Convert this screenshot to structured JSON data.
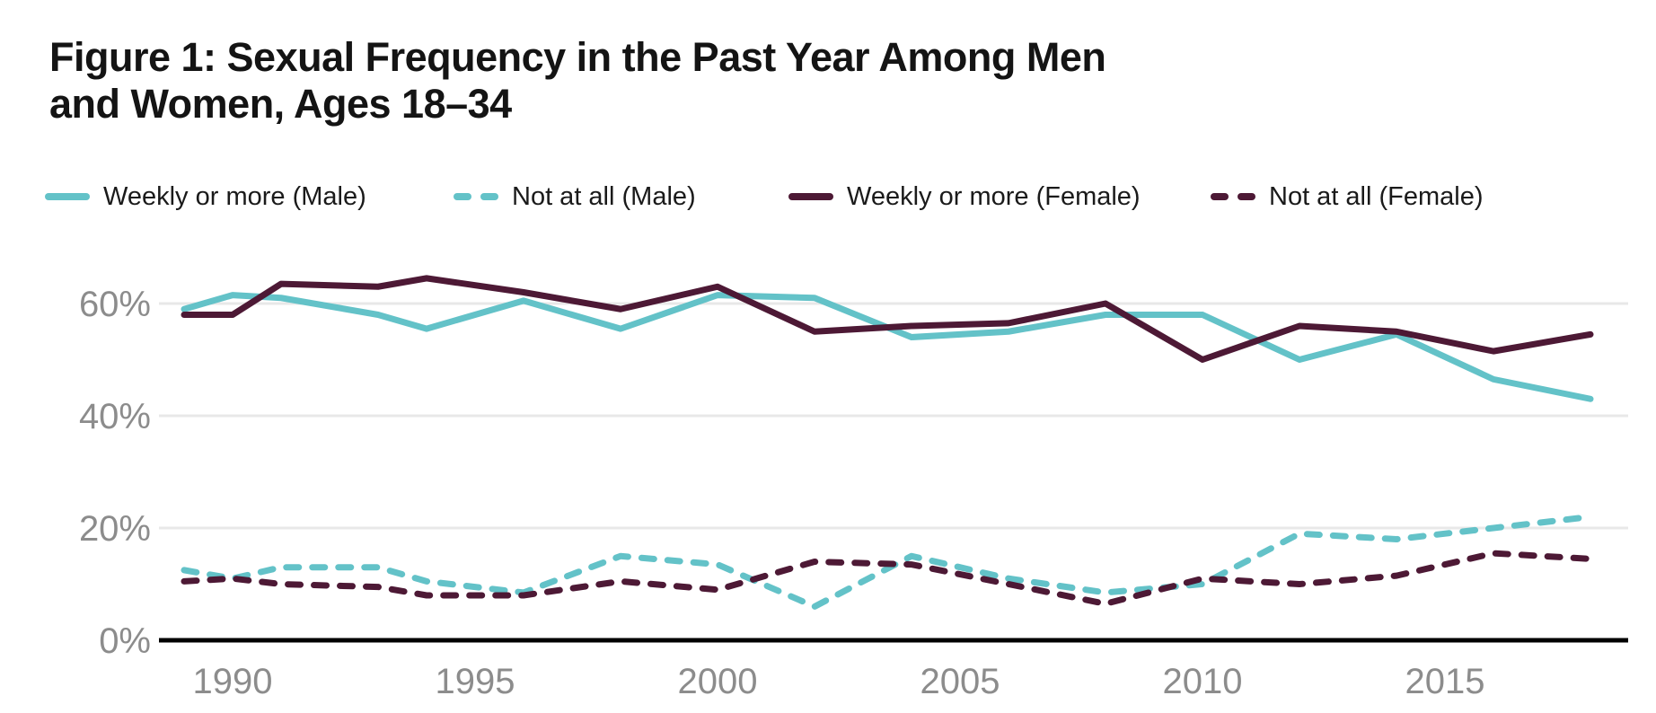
{
  "title": {
    "full": "Figure 1: Sexual Frequency in the Past Year Among Men and Women, Ages 18–34",
    "lines": [
      "Figure 1: Sexual Frequency in the Past Year Among Men",
      "and Women, Ages 18–34"
    ]
  },
  "colors": {
    "teal": "#63c2c8",
    "maroon": "#4d1935",
    "axis_label_gray": "#8c8c8c",
    "gridline_gray": "#e8e8e8",
    "axis_line_black": "#000000",
    "title_text": "#141414"
  },
  "legend": {
    "items": [
      {
        "label": "Weekly or more (Male)",
        "color": "#63c2c8",
        "style": "solid",
        "x": 50
      },
      {
        "label": "Not at all (Male)",
        "color": "#63c2c8",
        "style": "dashed",
        "x": 505
      },
      {
        "label": "Weekly or more (Female)",
        "color": "#4d1935",
        "style": "solid",
        "x": 878
      },
      {
        "label": "Not at all (Female)",
        "color": "#4d1935",
        "style": "dashed",
        "x": 1348
      }
    ]
  },
  "chart_data": {
    "type": "line",
    "title": "Figure 1: Sexual Frequency in the Past Year Among Men and Women, Ages 18–34",
    "xlabel": "",
    "ylabel": "",
    "x": [
      1989,
      1990,
      1991,
      1993,
      1994,
      1996,
      1998,
      2000,
      2002,
      2004,
      2006,
      2008,
      2010,
      2012,
      2014,
      2016,
      2018
    ],
    "series": [
      {
        "name": "Weekly or more (Male)",
        "style": "solid",
        "color": "#63c2c8",
        "values": [
          59,
          61.5,
          61,
          58,
          55.5,
          60.5,
          55.5,
          61.5,
          61,
          54,
          55,
          58,
          58,
          50,
          54.5,
          46.5,
          43
        ]
      },
      {
        "name": "Not at all (Male)",
        "style": "dashed",
        "color": "#63c2c8",
        "values": [
          12.5,
          11,
          13,
          13,
          10.5,
          8.5,
          15,
          13.5,
          6,
          15,
          11,
          8.5,
          10,
          19,
          18,
          20,
          22
        ]
      },
      {
        "name": "Weekly or more (Female)",
        "style": "solid",
        "color": "#4d1935",
        "values": [
          58,
          58,
          63.5,
          63,
          64.5,
          62,
          59,
          63,
          55,
          56,
          56.5,
          60,
          50,
          56,
          55,
          51.5,
          54.5
        ]
      },
      {
        "name": "Not at all (Female)",
        "style": "dashed",
        "color": "#4d1935",
        "values": [
          10.5,
          11,
          10,
          9.5,
          8,
          8,
          10.5,
          9,
          14,
          13.5,
          10,
          6.5,
          11,
          10,
          11.5,
          15.5,
          14.5
        ]
      }
    ],
    "xlim": [
      1989,
      2018
    ],
    "ylim": [
      0,
      70
    ],
    "yticks": [
      0,
      20,
      40,
      60
    ],
    "ytick_labels": [
      "0%",
      "20%",
      "40%",
      "60%"
    ],
    "xticks": [
      1990,
      1995,
      2000,
      2005,
      2010,
      2015
    ],
    "xtick_labels": [
      "1990",
      "1995",
      "2000",
      "2005",
      "2010",
      "2015"
    ],
    "grid": true,
    "legend_position": "top"
  }
}
